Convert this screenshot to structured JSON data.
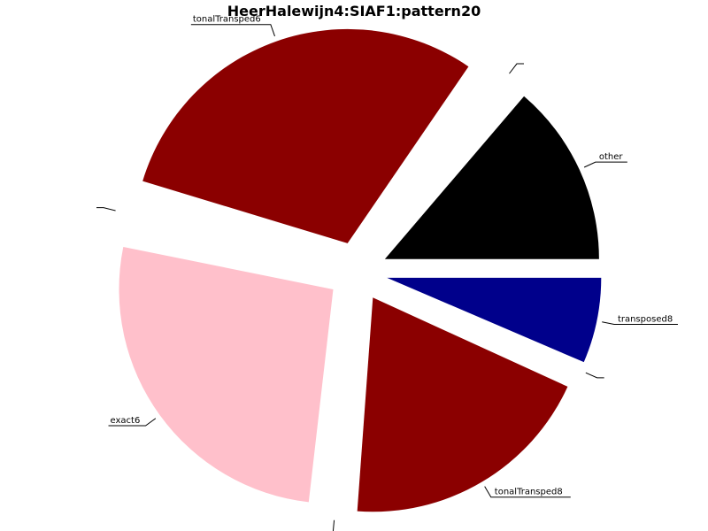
{
  "chart_data": {
    "type": "pie",
    "title": "HeerHalewijn4:SIAF1:pattern20",
    "start_angle_deg": 0,
    "direction": "counterclockwise",
    "explode": true,
    "slices": [
      {
        "label": "other",
        "value": 14.5,
        "color": "#000000",
        "label_position": "outside-right"
      },
      {
        "label": "",
        "value": 1.8,
        "color": "#ffffff",
        "label_position": "outside-right"
      },
      {
        "label": "tonalTransped6",
        "value": 31.5,
        "color": "#8b0000",
        "label_position": "outside-top"
      },
      {
        "label": "",
        "value": 1.6,
        "color": "#ffffff",
        "label_position": "outside-left"
      },
      {
        "label": "exact6",
        "value": 27.8,
        "color": "#ffc0cb",
        "label_position": "outside-left"
      },
      {
        "label": "",
        "value": 0.7,
        "color": "#ffffff",
        "label_position": "outside-bottom"
      },
      {
        "label": "tonalTransped8",
        "value": 20.4,
        "color": "#8b0000",
        "label_position": "outside-bottom"
      },
      {
        "label": "",
        "value": 0.4,
        "color": "#ffffff",
        "label_position": "outside-right"
      },
      {
        "label": "transposed8",
        "value": 6.8,
        "color": "#00008b",
        "label_position": "outside-right"
      }
    ]
  }
}
